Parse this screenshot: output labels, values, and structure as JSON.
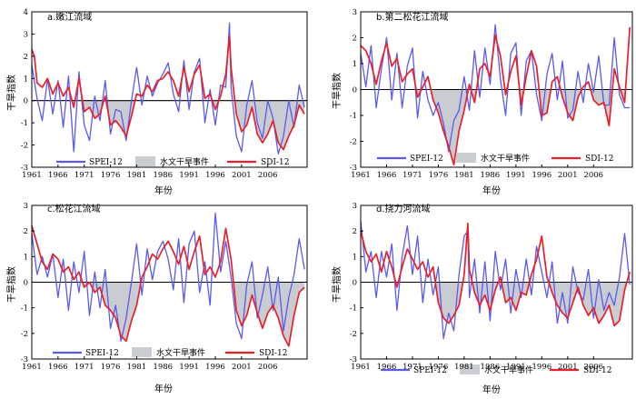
{
  "colors": {
    "spei": "#5a5aee",
    "sdi": "#e8202a",
    "drought": "#c9cdd1",
    "axis": "#000000"
  },
  "legend": {
    "spei": "SPEI-12",
    "drought": "水文干旱事件",
    "sdi": "SDI-12"
  },
  "chart_data": [
    {
      "type": "line",
      "title": "a.嫩江流域",
      "xlabel": "年份",
      "ylabel": "干旱指数",
      "xlim": [
        1961,
        2013.5
      ],
      "ylim": [
        -3,
        4
      ],
      "yticks": [
        -3,
        -2,
        -1,
        0,
        1,
        2,
        3,
        4
      ],
      "xticks": [
        1961,
        1966,
        1971,
        1976,
        1981,
        1986,
        1991,
        1996,
        2001,
        2006
      ],
      "grid": false,
      "legend_position": "bottom",
      "series": [
        {
          "name": "SDI-12",
          "x": [
            1961,
            1961.5,
            1962,
            1963,
            1964,
            1965,
            1966,
            1967,
            1968,
            1969,
            1970,
            1971,
            1972,
            1973,
            1974,
            1975,
            1976,
            1977,
            1978,
            1979,
            1980,
            1981,
            1982,
            1983,
            1984,
            1985,
            1986,
            1987,
            1988,
            1989,
            1990,
            1991,
            1992,
            1993,
            1994,
            1995,
            1996,
            1997,
            1998,
            1998.7,
            1999,
            2000,
            2001,
            2002,
            2003,
            2004,
            2005,
            2006,
            2007,
            2008,
            2009,
            2010,
            2011,
            2012,
            2013
          ],
          "y": [
            2.3,
            2.0,
            0.8,
            0.6,
            1.0,
            0.3,
            0.8,
            0.2,
            0.6,
            -0.3,
            1.0,
            -0.5,
            -0.3,
            -0.8,
            -0.6,
            0.2,
            -1.1,
            -0.9,
            -1.2,
            -1.6,
            -0.7,
            0.3,
            0.2,
            0.7,
            0.4,
            0.9,
            1.0,
            1.3,
            0.9,
            0.2,
            1.5,
            0.4,
            1.2,
            1.6,
            0.1,
            0.3,
            -0.4,
            0.2,
            1.2,
            2.9,
            1.5,
            -0.6,
            -1.4,
            -1.1,
            -0.3,
            -1.5,
            -1.9,
            -1.5,
            -0.9,
            -1.9,
            -2.2,
            -1.6,
            -1.1,
            -0.2,
            -0.6
          ]
        },
        {
          "name": "SPEI-12",
          "x": [
            1961,
            1962,
            1963,
            1964,
            1965,
            1966,
            1967,
            1968,
            1969,
            1970,
            1971,
            1972,
            1973,
            1974,
            1975,
            1976,
            1977,
            1978,
            1979,
            1980,
            1981,
            1982,
            1983,
            1984,
            1985,
            1986,
            1987,
            1988,
            1989,
            1990,
            1991,
            1992,
            1993,
            1994,
            1995,
            1996,
            1997,
            1998,
            1998.7,
            1999,
            2000,
            2001,
            2002,
            2003,
            2004,
            2005,
            2006,
            2007,
            2008,
            2009,
            2010,
            2011,
            2012,
            2013
          ],
          "y": [
            1.6,
            0.1,
            -0.9,
            1.0,
            -0.6,
            0.9,
            -1.2,
            1.1,
            -2.3,
            1.3,
            -1.1,
            -1.8,
            0.2,
            -0.9,
            0.9,
            -1.5,
            -0.4,
            -0.5,
            -1.8,
            0.0,
            1.5,
            -0.2,
            1.1,
            0.2,
            0.8,
            1.2,
            1.7,
            0.3,
            -0.5,
            1.8,
            -0.4,
            1.3,
            1.9,
            -1.0,
            0.5,
            -1.1,
            0.7,
            0.6,
            3.5,
            0.6,
            -1.6,
            -2.3,
            -0.2,
            0.9,
            -1.0,
            -1.7,
            0.0,
            -0.8,
            -2.4,
            -1.6,
            0.0,
            -1.2,
            0.7,
            -0.3
          ]
        }
      ]
    },
    {
      "type": "line",
      "title": "b.第二松花江流域",
      "xlabel": "年份",
      "ylabel": "干旱指数",
      "xlim": [
        1961,
        2013.5
      ],
      "ylim": [
        -3,
        3
      ],
      "yticks": [
        -3,
        -2,
        -1,
        0,
        1,
        2,
        3
      ],
      "xticks": [
        1961,
        1966,
        1971,
        1976,
        1981,
        1986,
        1991,
        1996,
        2001,
        2006
      ],
      "grid": false,
      "legend_position": "bottom",
      "series": [
        {
          "name": "SDI-12",
          "x": [
            1961,
            1962,
            1963,
            1964,
            1965,
            1966,
            1967,
            1968,
            1969,
            1970,
            1971,
            1972,
            1973,
            1974,
            1975,
            1976,
            1977,
            1978,
            1979,
            1980,
            1981,
            1982,
            1983,
            1984,
            1985,
            1986,
            1987,
            1988,
            1989,
            1990,
            1991,
            1992,
            1993,
            1994,
            1995,
            1996,
            1997,
            1998,
            1999,
            2000,
            2001,
            2002,
            2003,
            2004,
            2005,
            2006,
            2007,
            2008,
            2009,
            2010,
            2011,
            2012,
            2013
          ],
          "y": [
            1.7,
            1.5,
            1.0,
            0.2,
            1.1,
            1.8,
            0.9,
            1.2,
            0.3,
            0.6,
            0.8,
            -0.3,
            0.1,
            0.5,
            -0.4,
            -0.9,
            -1.6,
            -2.2,
            -2.9,
            -1.6,
            -0.8,
            0.2,
            -0.5,
            0.8,
            1.0,
            0.5,
            2.1,
            1.3,
            -0.2,
            0.7,
            1.3,
            -0.6,
            0.5,
            1.5,
            0.9,
            -1.0,
            -0.9,
            0.3,
            0.5,
            -0.3,
            -0.9,
            -1.2,
            -0.3,
            0.1,
            0.3,
            -0.4,
            -0.6,
            -0.5,
            -1.4,
            0.8,
            0.1,
            -0.5,
            2.4
          ]
        },
        {
          "name": "SPEI-12",
          "x": [
            1961,
            1962,
            1963,
            1964,
            1965,
            1966,
            1967,
            1968,
            1969,
            1970,
            1971,
            1972,
            1973,
            1974,
            1975,
            1976,
            1977,
            1978,
            1979,
            1980,
            1981,
            1982,
            1983,
            1984,
            1985,
            1986,
            1987,
            1988,
            1989,
            1990,
            1991,
            1992,
            1993,
            1994,
            1995,
            1996,
            1997,
            1998,
            1999,
            2000,
            2001,
            2002,
            2003,
            2004,
            2005,
            2006,
            2007,
            2008,
            2009,
            2010,
            2011,
            2012,
            2013
          ],
          "y": [
            1.4,
            0.1,
            1.7,
            -0.7,
            0.8,
            2.0,
            -0.4,
            1.4,
            -0.7,
            0.9,
            1.6,
            -1.1,
            0.7,
            -0.4,
            -1.0,
            -0.5,
            -1.3,
            -2.4,
            -1.2,
            -0.8,
            0.5,
            -0.8,
            1.5,
            -0.3,
            1.6,
            0.2,
            2.5,
            0.4,
            -1.0,
            1.4,
            1.8,
            -1.0,
            1.1,
            1.5,
            -0.2,
            -1.2,
            0.6,
            1.4,
            -0.4,
            1.1,
            -1.1,
            -0.8,
            0.7,
            -0.5,
            1.0,
            -0.1,
            1.3,
            -0.6,
            -0.6,
            2.0,
            -0.2,
            -0.7,
            -0.7
          ]
        }
      ]
    },
    {
      "type": "line",
      "title": "c.松花江流域",
      "xlabel": "年份",
      "ylabel": "干旱指数",
      "xlim": [
        1961,
        2013.5
      ],
      "ylim": [
        -3,
        3
      ],
      "yticks": [
        -3,
        -2,
        -1,
        0,
        1,
        2,
        3
      ],
      "xticks": [
        1961,
        1966,
        1971,
        1976,
        1981,
        1986,
        1991,
        1996,
        2001,
        2006
      ],
      "grid": false,
      "legend_position": "bottom",
      "series": [
        {
          "name": "SDI-12",
          "x": [
            1961,
            1962,
            1963,
            1964,
            1965,
            1966,
            1967,
            1968,
            1969,
            1970,
            1971,
            1972,
            1973,
            1974,
            1975,
            1976,
            1977,
            1978,
            1979,
            1980,
            1981,
            1982,
            1983,
            1984,
            1985,
            1986,
            1987,
            1988,
            1989,
            1990,
            1991,
            1992,
            1993,
            1994,
            1995,
            1996,
            1997,
            1998,
            1999,
            2000,
            2001,
            2002,
            2003,
            2004,
            2005,
            2006,
            2007,
            2008,
            2009,
            2010,
            2011,
            2012,
            2013
          ],
          "y": [
            2.2,
            1.5,
            0.8,
            0.5,
            1.1,
            0.9,
            0.4,
            0.6,
            0.1,
            0.4,
            -0.2,
            0.0,
            -0.4,
            -0.2,
            -0.9,
            -1.1,
            -1.4,
            -2.1,
            -2.3,
            -1.5,
            -0.9,
            0.2,
            0.6,
            1.1,
            0.9,
            1.3,
            1.6,
            1.2,
            0.7,
            1.4,
            0.5,
            1.2,
            1.8,
            0.3,
            0.6,
            0.2,
            0.8,
            2.1,
            0.9,
            -1.1,
            -1.7,
            -1.3,
            -0.5,
            -1.2,
            -1.8,
            -1.2,
            -0.9,
            -1.4,
            -2.1,
            -2.5,
            -1.3,
            -0.4,
            -0.2
          ]
        },
        {
          "name": "SPEI-12",
          "x": [
            1961,
            1962,
            1963,
            1964,
            1965,
            1966,
            1967,
            1968,
            1969,
            1970,
            1971,
            1972,
            1973,
            1974,
            1975,
            1976,
            1977,
            1978,
            1979,
            1980,
            1981,
            1982,
            1983,
            1984,
            1985,
            1986,
            1987,
            1988,
            1989,
            1990,
            1991,
            1992,
            1993,
            1994,
            1995,
            1996,
            1997,
            1998,
            1999,
            2000,
            2001,
            2002,
            2003,
            2004,
            2005,
            2006,
            2007,
            2008,
            2009,
            2010,
            2011,
            2012,
            2013
          ],
          "y": [
            1.9,
            0.3,
            1.0,
            0.2,
            1.1,
            -0.6,
            0.9,
            -1.1,
            0.8,
            -0.4,
            1.2,
            -1.3,
            0.4,
            -1.0,
            0.5,
            -1.8,
            -0.9,
            -2.3,
            -1.4,
            0.0,
            1.5,
            -0.5,
            1.3,
            0.1,
            1.2,
            1.6,
            0.9,
            -0.3,
            1.7,
            -0.8,
            1.5,
            2.0,
            -0.4,
            0.8,
            -0.9,
            2.7,
            0.4,
            1.6,
            0.2,
            -1.6,
            -2.2,
            -0.1,
            0.8,
            -1.4,
            -0.5,
            0.6,
            -1.1,
            0.2,
            -1.9,
            -0.6,
            0.3,
            1.7,
            0.5
          ]
        }
      ]
    },
    {
      "type": "line",
      "title": "d.挠力河流域",
      "xlabel": "年份",
      "ylabel": "干旱指数",
      "xlim": [
        1961,
        2013.5
      ],
      "ylim": [
        -3,
        3
      ],
      "yticks": [
        -3,
        -2,
        -1,
        0,
        1,
        2,
        3
      ],
      "xticks": [
        1961,
        1966,
        1971,
        1976,
        1981,
        1986,
        1991,
        1996,
        2001,
        2006
      ],
      "grid": false,
      "legend_position": "bottom",
      "series": [
        {
          "name": "SDI-12",
          "x": [
            1961,
            1962,
            1963,
            1964,
            1965,
            1966,
            1967,
            1968,
            1969,
            1970,
            1971,
            1972,
            1973,
            1974,
            1975,
            1976,
            1977,
            1978,
            1979,
            1980,
            1981,
            1981.7,
            1982,
            1983,
            1984,
            1985,
            1986,
            1987,
            1988,
            1989,
            1990,
            1991,
            1992,
            1993,
            1994,
            1995,
            1996,
            1997,
            1998,
            1999,
            2000,
            2001,
            2002,
            2003,
            2004,
            2005,
            2006,
            2007,
            2008,
            2009,
            2010,
            2011,
            2012,
            2013
          ],
          "y": [
            2.0,
            1.2,
            0.8,
            1.1,
            0.4,
            1.2,
            0.6,
            -0.2,
            0.6,
            1.3,
            0.9,
            0.5,
            0.8,
            0.2,
            0.6,
            -0.8,
            -1.4,
            -1.6,
            -1.3,
            -0.9,
            0.3,
            2.3,
            0.5,
            -0.4,
            -0.9,
            -0.5,
            -1.1,
            -0.3,
            0.2,
            -0.8,
            -0.6,
            -1.1,
            -0.4,
            -0.5,
            0.3,
            0.9,
            1.8,
            0.2,
            -0.4,
            -0.9,
            -1.2,
            -1.4,
            -0.8,
            -0.2,
            -0.9,
            -1.3,
            -1.0,
            -1.6,
            -1.3,
            -0.9,
            -1.7,
            -1.5,
            -0.3,
            0.4
          ]
        },
        {
          "name": "SPEI-12",
          "x": [
            1961,
            1962,
            1963,
            1964,
            1965,
            1966,
            1967,
            1968,
            1969,
            1970,
            1971,
            1972,
            1973,
            1974,
            1975,
            1976,
            1977,
            1978,
            1979,
            1980,
            1981,
            1981.7,
            1982,
            1983,
            1984,
            1985,
            1986,
            1987,
            1988,
            1989,
            1990,
            1991,
            1992,
            1993,
            1994,
            1995,
            1996,
            1997,
            1998,
            1999,
            2000,
            2001,
            2002,
            2003,
            2004,
            2005,
            2006,
            2007,
            2008,
            2009,
            2010,
            2011,
            2012,
            2013
          ],
          "y": [
            2.4,
            0.4,
            1.2,
            -0.6,
            1.2,
            0.2,
            1.5,
            -1.1,
            1.0,
            2.2,
            0.3,
            1.8,
            -0.8,
            0.9,
            -0.5,
            0.6,
            -2.2,
            -1.2,
            -1.9,
            0.3,
            1.8,
            2.0,
            -0.6,
            0.9,
            -1.2,
            0.8,
            -1.5,
            1.2,
            -0.3,
            0.9,
            -1.2,
            0.5,
            -0.6,
            0.9,
            -0.5,
            1.4,
            0.4,
            -0.6,
            0.8,
            -1.6,
            -0.4,
            -1.6,
            0.6,
            -0.4,
            -0.7,
            0.5,
            -1.4,
            0.1,
            -1.1,
            -0.4,
            -0.9,
            0.2,
            1.9,
            -0.1
          ]
        }
      ]
    }
  ]
}
